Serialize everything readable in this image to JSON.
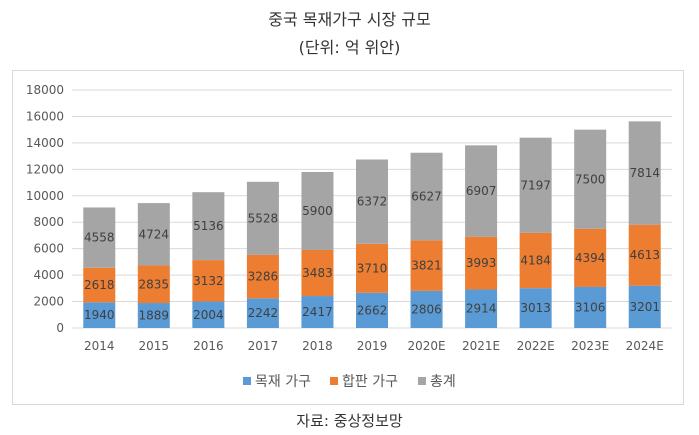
{
  "header": {
    "title": "중국 목재가구 시장 규모",
    "subtitle": "(단위: 억 위안)"
  },
  "footer": {
    "source": "자료: 중상정보망"
  },
  "colors": {
    "series_1": "#5b9bd5",
    "series_2": "#ed7d31",
    "series_3": "#a5a5a5",
    "grid": "#d9d9d9",
    "axis_text": "#595959",
    "label_text": "#404040"
  },
  "chart_data": {
    "type": "bar",
    "stacked": true,
    "categories": [
      "2014",
      "2015",
      "2016",
      "2017",
      "2018",
      "2019",
      "2020E",
      "2021E",
      "2022E",
      "2023E",
      "2024E"
    ],
    "series": [
      {
        "name": "목재 가구",
        "values": [
          1940,
          1889,
          2004,
          2242,
          2417,
          2662,
          2806,
          2914,
          3013,
          3106,
          3201
        ]
      },
      {
        "name": "합판 가구",
        "values": [
          2618,
          2835,
          3132,
          3286,
          3483,
          3710,
          3821,
          3993,
          4184,
          4394,
          4613
        ]
      },
      {
        "name": "총계",
        "values": [
          4558,
          4724,
          5136,
          5528,
          5900,
          6372,
          6627,
          6907,
          7197,
          7500,
          7814
        ]
      }
    ],
    "ylim": [
      0,
      18000
    ],
    "yticks": [
      0,
      2000,
      4000,
      6000,
      8000,
      10000,
      12000,
      14000,
      16000,
      18000
    ],
    "grid": true,
    "legend": "bottom"
  }
}
